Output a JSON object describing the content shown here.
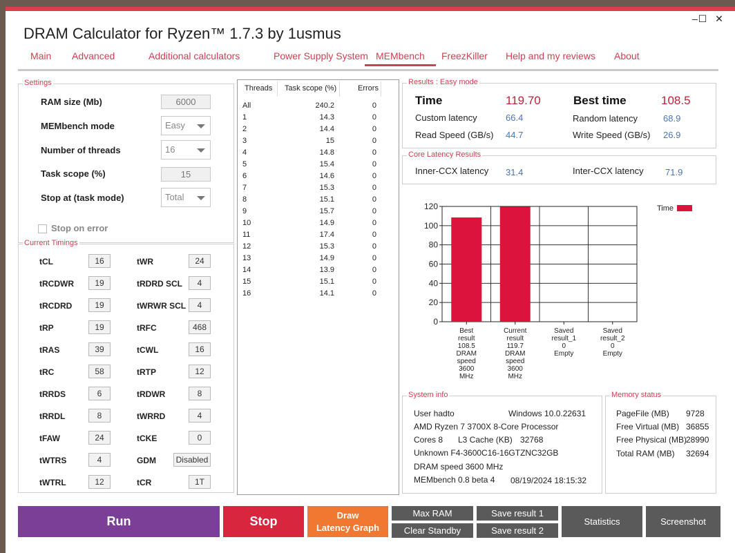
{
  "window": {
    "title": "DRAM Calculator for Ryzen™ 1.7.3 by 1usmus",
    "controls": {
      "minimize": "–",
      "maximize": "☐",
      "close": "✕"
    }
  },
  "tabs": [
    "Main",
    "Advanced",
    "Additional calculators",
    "Power Supply System",
    "MEMbench",
    "FreezKiller",
    "Help and my reviews",
    "About"
  ],
  "active_tab": "MEMbench",
  "settings": {
    "title": "Settings",
    "ram_size_label": "RAM size (Mb)",
    "ram_size_value": "6000",
    "mode_label": "MEMbench mode",
    "mode_value": "Easy",
    "threads_label": "Number of threads",
    "threads_value": "16",
    "task_scope_label": "Task scope (%)",
    "task_scope_value": "15",
    "stop_at_label": "Stop at (task mode)",
    "stop_at_value": "Total",
    "stop_on_error_label": "Stop on error"
  },
  "timings": {
    "title": "Current Timings",
    "items": [
      {
        "l": "tCL",
        "v": "16"
      },
      {
        "l": "tWR",
        "v": "24"
      },
      {
        "l": "tRCDWR",
        "v": "19"
      },
      {
        "l": "tRDRD SCL",
        "v": "4"
      },
      {
        "l": "tRCDRD",
        "v": "19"
      },
      {
        "l": "tWRWR SCL",
        "v": "4"
      },
      {
        "l": "tRP",
        "v": "19"
      },
      {
        "l": "tRFC",
        "v": "468"
      },
      {
        "l": "tRAS",
        "v": "39"
      },
      {
        "l": "tCWL",
        "v": "16"
      },
      {
        "l": "tRC",
        "v": "58"
      },
      {
        "l": "tRTP",
        "v": "12"
      },
      {
        "l": "tRRDS",
        "v": "6"
      },
      {
        "l": "tRDWR",
        "v": "8"
      },
      {
        "l": "tRRDL",
        "v": "8"
      },
      {
        "l": "tWRRD",
        "v": "4"
      },
      {
        "l": "tFAW",
        "v": "24"
      },
      {
        "l": "tCKE",
        "v": "0"
      },
      {
        "l": "tWTRS",
        "v": "4"
      },
      {
        "l": "GDM",
        "v": "Disabled"
      },
      {
        "l": "tWTRL",
        "v": "12"
      },
      {
        "l": "tCR",
        "v": "1T"
      }
    ]
  },
  "threads_table": {
    "headers": [
      "Threads",
      "Task scope (%)",
      "Errors"
    ],
    "rows": [
      [
        "All",
        "240.2",
        "0"
      ],
      [
        "1",
        "14.3",
        "0"
      ],
      [
        "2",
        "14.4",
        "0"
      ],
      [
        "3",
        "15",
        "0"
      ],
      [
        "4",
        "14.8",
        "0"
      ],
      [
        "5",
        "15.4",
        "0"
      ],
      [
        "6",
        "14.6",
        "0"
      ],
      [
        "7",
        "15.3",
        "0"
      ],
      [
        "8",
        "15.1",
        "0"
      ],
      [
        "9",
        "15.7",
        "0"
      ],
      [
        "10",
        "14.9",
        "0"
      ],
      [
        "11",
        "17.4",
        "0"
      ],
      [
        "12",
        "15.3",
        "0"
      ],
      [
        "13",
        "14.9",
        "0"
      ],
      [
        "14",
        "13.9",
        "0"
      ],
      [
        "15",
        "15.1",
        "0"
      ],
      [
        "16",
        "14.1",
        "0"
      ]
    ]
  },
  "results": {
    "title": "Results : Easy mode",
    "time_label": "Time",
    "time_value": "119.70",
    "best_label": "Best time",
    "best_value": "108.5",
    "custom_label": "Custom latency",
    "custom_value": "66.4",
    "random_label": "Random latency",
    "random_value": "68.9",
    "read_label": "Read Speed (GB/s)",
    "read_value": "44.7",
    "write_label": "Write Speed (GB/s)",
    "write_value": "26.9"
  },
  "core_latency": {
    "title": "Core Latency Results",
    "inner_label": "Inner-CCX latency",
    "inner_value": "31.4",
    "inter_label": "Inter-CCX latency",
    "inter_value": "71.9"
  },
  "chart_data": {
    "type": "bar",
    "categories": [
      "Best result 108.5 DRAM speed 3600 MHz",
      "Current result 119.7 DRAM speed 3600 MHz",
      "Saved result_1 0 Empty",
      "Saved result_2 0 Empty"
    ],
    "category_lines": [
      [
        "Best",
        "result",
        "108.5",
        "DRAM",
        "speed",
        "3600",
        "MHz"
      ],
      [
        "Current",
        "result",
        "119.7",
        "DRAM",
        "speed",
        "3600",
        "MHz"
      ],
      [
        "Saved",
        "result_1",
        "0",
        "Empty"
      ],
      [
        "Saved",
        "result_2",
        "0",
        "Empty"
      ]
    ],
    "series": [
      {
        "name": "Time",
        "values": [
          108.5,
          119.7,
          0,
          0
        ],
        "color": "#dc143c"
      }
    ],
    "ylim": [
      0,
      120
    ],
    "yticks": [
      "0",
      "20",
      "40",
      "60",
      "80",
      "100",
      "120"
    ],
    "grid": true,
    "legend_position": "top-right"
  },
  "system_info": {
    "title": "System info",
    "user": "User hadto",
    "os": "Windows 10.0.22631",
    "cpu": "AMD Ryzen 7 3700X 8-Core Processor",
    "cores": "Cores 8",
    "l3_label": "L3 Cache (KB)",
    "l3_value": "32768",
    "memory": "Unknown F4-3600C16-16GTZNC32GB",
    "dram_speed": "DRAM speed 3600 MHz",
    "version": "MEMbench 0.8 beta 4",
    "timestamp": "08/19/2024 18:15:32"
  },
  "memory_status": {
    "title": "Memory status",
    "rows": [
      {
        "l": "PageFile (MB)",
        "v": "9728"
      },
      {
        "l": "Free Virtual (MB)",
        "v": "36855"
      },
      {
        "l": "Free Physical (MB)",
        "v": "28990"
      },
      {
        "l": "Total RAM (MB)",
        "v": "32694"
      }
    ]
  },
  "buttons": {
    "run": "Run",
    "stop": "Stop",
    "draw_line1": "Draw",
    "draw_line2": "Latency Graph",
    "max_ram": "Max RAM",
    "clear_standby": "Clear Standby",
    "save1": "Save result 1",
    "save2": "Save result 2",
    "statistics": "Statistics",
    "screenshot": "Screenshot"
  },
  "colors": {
    "accent": "#d04050",
    "run": "#7b3f98",
    "stop": "#d8263f",
    "draw": "#f07830",
    "gray_button": "#5a5a5a",
    "bar": "#dc143c"
  }
}
